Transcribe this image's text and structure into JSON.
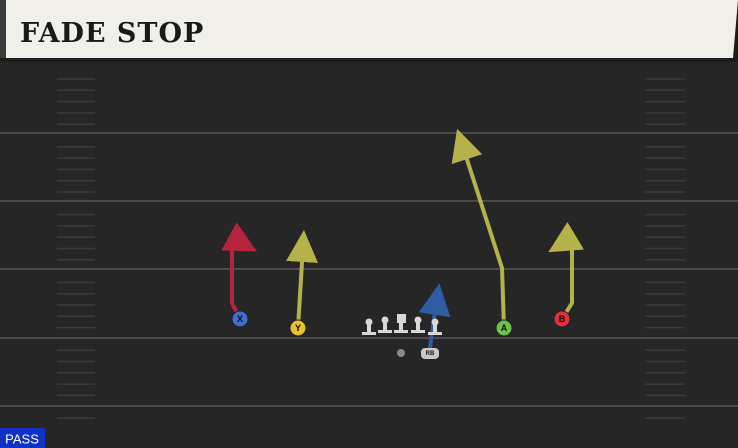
{
  "header": {
    "title": "FADE STOP"
  },
  "play_type": "PASS",
  "players": [
    {
      "label": "X"
    },
    {
      "label": "Y"
    },
    {
      "label": "A"
    },
    {
      "label": "B"
    },
    {
      "label": "RB"
    }
  ]
}
